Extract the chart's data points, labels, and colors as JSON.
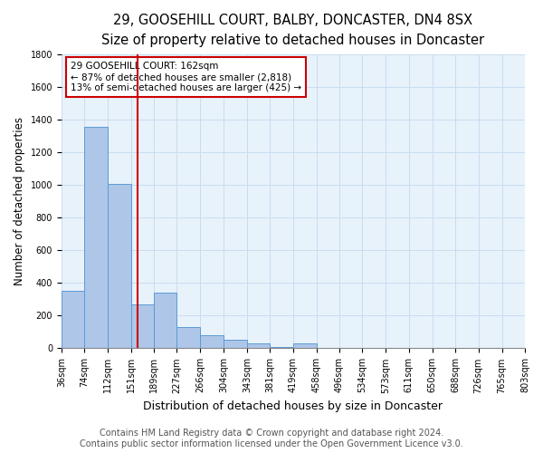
{
  "title1": "29, GOOSEHILL COURT, BALBY, DONCASTER, DN4 8SX",
  "title2": "Size of property relative to detached houses in Doncaster",
  "xlabel": "Distribution of detached houses by size in Doncaster",
  "ylabel": "Number of detached properties",
  "footer1": "Contains HM Land Registry data © Crown copyright and database right 2024.",
  "footer2": "Contains public sector information licensed under the Open Government Licence v3.0.",
  "bin_labels": [
    "36sqm",
    "74sqm",
    "112sqm",
    "151sqm",
    "189sqm",
    "227sqm",
    "266sqm",
    "304sqm",
    "343sqm",
    "381sqm",
    "419sqm",
    "458sqm",
    "496sqm",
    "534sqm",
    "573sqm",
    "611sqm",
    "650sqm",
    "688sqm",
    "726sqm",
    "765sqm",
    "803sqm"
  ],
  "bin_edges": [
    36,
    74,
    112,
    151,
    189,
    227,
    266,
    304,
    343,
    381,
    419,
    458,
    496,
    534,
    573,
    611,
    650,
    688,
    726,
    765,
    803
  ],
  "bar_heights": [
    350,
    1360,
    1010,
    270,
    340,
    130,
    80,
    50,
    30,
    10,
    30,
    5,
    0,
    0,
    0,
    0,
    0,
    0,
    0,
    0
  ],
  "bar_color": "#aec6e8",
  "bar_edge_color": "#5b9bd5",
  "bar_linewidth": 0.7,
  "property_size": 162,
  "red_line_color": "#cc0000",
  "ylim": [
    0,
    1800
  ],
  "yticks": [
    0,
    200,
    400,
    600,
    800,
    1000,
    1200,
    1400,
    1600,
    1800
  ],
  "annotation_title": "29 GOOSEHILL COURT: 162sqm",
  "annotation_line1": "← 87% of detached houses are smaller (2,818)",
  "annotation_line2": "13% of semi-detached houses are larger (425) →",
  "annotation_box_color": "#ffffff",
  "annotation_box_edge": "#cc0000",
  "grid_color": "#c8ddf0",
  "background_color": "#e8f2fb",
  "title1_fontsize": 10.5,
  "title2_fontsize": 9.5,
  "xlabel_fontsize": 9,
  "ylabel_fontsize": 8.5,
  "annotation_fontsize": 7.5,
  "footer_fontsize": 7,
  "tick_fontsize": 7
}
